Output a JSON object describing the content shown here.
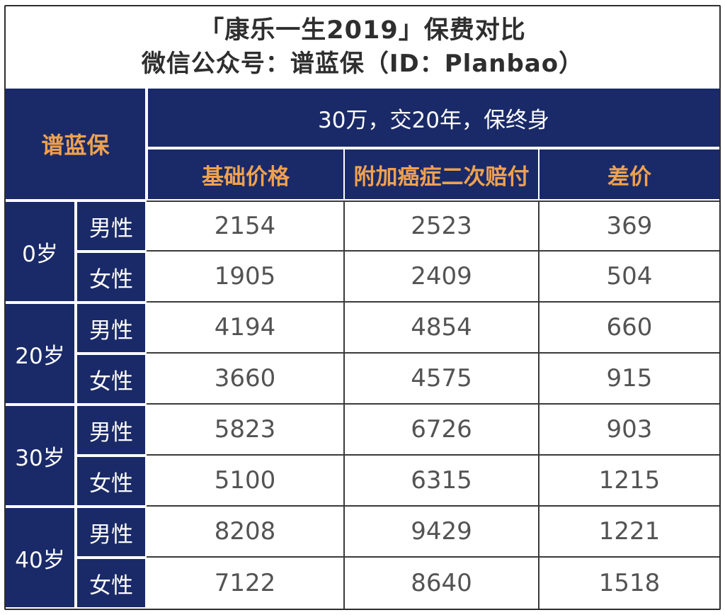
{
  "title": {
    "line1": "「康乐一生2019」保费对比",
    "line2": "微信公众号：谱蓝保（ID：Planbao）"
  },
  "colors": {
    "navy_background": "#1a2a68",
    "orange_header_text": "#f0a14f",
    "data_text": "#535353",
    "grid_line_dark": "#3a3a3a",
    "separator_white": "#ffffff"
  },
  "table": {
    "brand": "谱蓝保",
    "plan_header": "30万，交20年，保终身",
    "columns": [
      "基础价格",
      "附加癌症二次赔付",
      "差价"
    ],
    "groups": [
      {
        "age": "0岁",
        "rows": [
          {
            "gender": "男性",
            "values": [
              "2154",
              "2523",
              "369"
            ]
          },
          {
            "gender": "女性",
            "values": [
              "1905",
              "2409",
              "504"
            ]
          }
        ]
      },
      {
        "age": "20岁",
        "rows": [
          {
            "gender": "男性",
            "values": [
              "4194",
              "4854",
              "660"
            ]
          },
          {
            "gender": "女性",
            "values": [
              "3660",
              "4575",
              "915"
            ]
          }
        ]
      },
      {
        "age": "30岁",
        "rows": [
          {
            "gender": "男性",
            "values": [
              "5823",
              "6726",
              "903"
            ]
          },
          {
            "gender": "女性",
            "values": [
              "5100",
              "6315",
              "1215"
            ]
          }
        ]
      },
      {
        "age": "40岁",
        "rows": [
          {
            "gender": "男性",
            "values": [
              "8208",
              "9429",
              "1221"
            ]
          },
          {
            "gender": "女性",
            "values": [
              "7122",
              "8640",
              "1518"
            ]
          }
        ]
      }
    ]
  },
  "chart_data": {
    "type": "table",
    "title": "「康乐一生2019」保费对比",
    "subtitle": "微信公众号：谱蓝保（ID：Planbao）",
    "condition_header": "30万，交20年，保终身",
    "columns": [
      "age",
      "gender",
      "基础价格",
      "附加癌症二次赔付",
      "差价"
    ],
    "rows": [
      [
        "0岁",
        "男性",
        2154,
        2523,
        369
      ],
      [
        "0岁",
        "女性",
        1905,
        2409,
        504
      ],
      [
        "20岁",
        "男性",
        4194,
        4854,
        660
      ],
      [
        "20岁",
        "女性",
        3660,
        4575,
        915
      ],
      [
        "30岁",
        "男性",
        5823,
        6726,
        903
      ],
      [
        "30岁",
        "女性",
        5100,
        6315,
        1215
      ],
      [
        "40岁",
        "男性",
        8208,
        9429,
        1221
      ],
      [
        "40岁",
        "女性",
        7122,
        8640,
        1518
      ]
    ]
  }
}
